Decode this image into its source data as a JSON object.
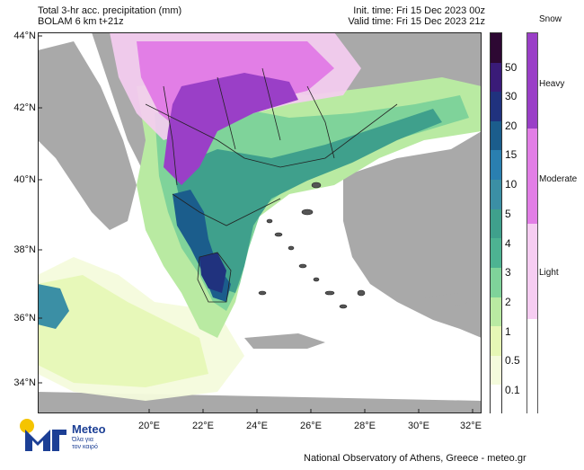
{
  "header": {
    "title_line1": "Total 3-hr acc. precipitation (mm)",
    "title_line2": "BOLAM 6 km t+21z",
    "init_time": "Init. time: Fri 15 Dec 2023 00z",
    "valid_time": "Valid time: Fri 15 Dec 2023 21z"
  },
  "map": {
    "lat_ticks": [
      "44°N",
      "42°N",
      "40°N",
      "38°N",
      "36°N",
      "34°N"
    ],
    "lon_ticks": [
      "20°E",
      "22°E",
      "24°E",
      "26°E",
      "28°E",
      "30°E",
      "32°E"
    ],
    "land_color": "#a9a9a9",
    "sea_color": "#ffffff"
  },
  "colorbar": {
    "labels": [
      "50",
      "30",
      "20",
      "15",
      "10",
      "5",
      "4",
      "3",
      "2",
      "1",
      "0.5",
      "0.1"
    ],
    "colors": [
      "#2d0833",
      "#3a1b78",
      "#20327e",
      "#1b5d8c",
      "#2a7fb0",
      "#3b8fa5",
      "#3fa08c",
      "#4db392",
      "#7fd39a",
      "#b9eaa2",
      "#e6f7b5",
      "#f4fbdc",
      "#ffffff"
    ]
  },
  "snow": {
    "title": "Snow",
    "labels": [
      "Heavy",
      "Moderate",
      "Light"
    ],
    "colors": [
      "#9a3fc7",
      "#e27ee6",
      "#f6cdf2",
      "#ffffff"
    ]
  },
  "footer": {
    "credit": "National Observatory of Athens, Greece - meteo.gr"
  },
  "logo": {
    "name": "Meteo",
    "tagline_line1": "Όλα για",
    "tagline_line2": "τον καιρό"
  }
}
